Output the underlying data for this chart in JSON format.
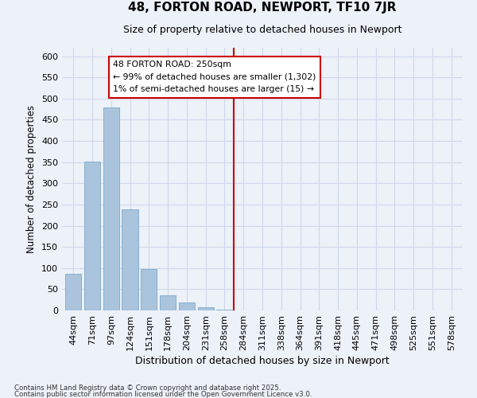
{
  "title": "48, FORTON ROAD, NEWPORT, TF10 7JR",
  "subtitle": "Size of property relative to detached houses in Newport",
  "xlabel": "Distribution of detached houses by size in Newport",
  "ylabel": "Number of detached properties",
  "bar_color": "#aac4de",
  "bar_edge_color": "#7aaaca",
  "categories": [
    "44sqm",
    "71sqm",
    "97sqm",
    "124sqm",
    "151sqm",
    "178sqm",
    "204sqm",
    "231sqm",
    "258sqm",
    "284sqm",
    "311sqm",
    "338sqm",
    "364sqm",
    "391sqm",
    "418sqm",
    "445sqm",
    "471sqm",
    "498sqm",
    "525sqm",
    "551sqm",
    "578sqm"
  ],
  "values": [
    87,
    352,
    480,
    238,
    97,
    35,
    18,
    8,
    2,
    0,
    0,
    0,
    0,
    0,
    0,
    0,
    0,
    0,
    0,
    0,
    0
  ],
  "ylim": [
    0,
    620
  ],
  "yticks": [
    0,
    50,
    100,
    150,
    200,
    250,
    300,
    350,
    400,
    450,
    500,
    550,
    600
  ],
  "vline_x": 8.5,
  "vline_color": "#cc0000",
  "annotation_text": "48 FORTON ROAD: 250sqm\n← 99% of detached houses are smaller (1,302)\n1% of semi-detached houses are larger (15) →",
  "annotation_box_color": "#ffffff",
  "annotation_box_edge": "#cc0000",
  "grid_color": "#ced8ea",
  "bg_color": "#edf1f8",
  "footnote1": "Contains HM Land Registry data © Crown copyright and database right 2025.",
  "footnote2": "Contains public sector information licensed under the Open Government Licence v3.0."
}
